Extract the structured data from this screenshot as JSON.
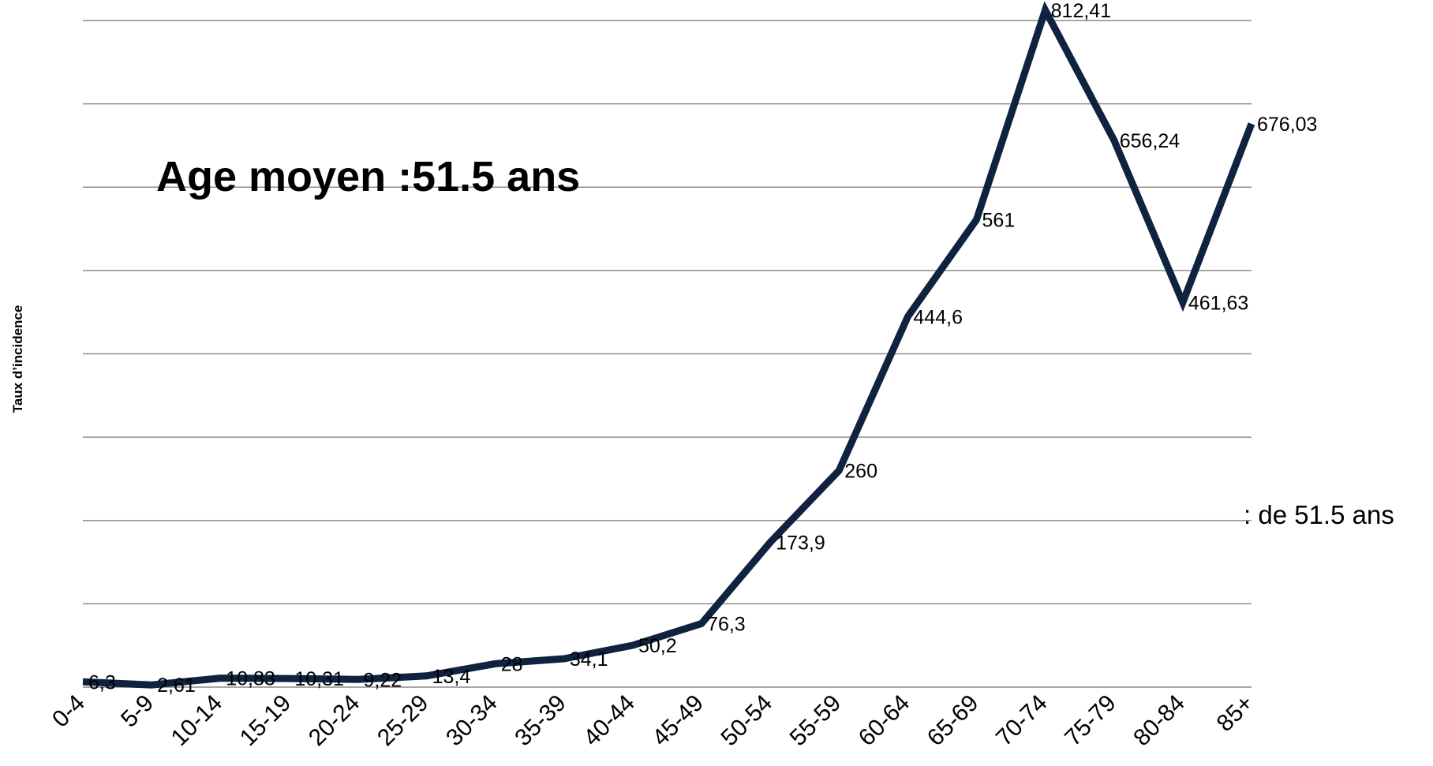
{
  "chart_data": {
    "type": "line",
    "ylabel": "Taux d’incidence",
    "xlabel": "",
    "categories": [
      "0-4",
      "5-9",
      "10-14",
      "15-19",
      "20-24",
      "25-29",
      "30-34",
      "35-39",
      "40-44",
      "45-49",
      "50-54",
      "55-59",
      "60-64",
      "65-69",
      "70-74",
      "75-79",
      "80-84",
      "85+"
    ],
    "series": [
      {
        "values": [
          6.3,
          2.61,
          10.83,
          10.31,
          9.22,
          13.4,
          28,
          34.1,
          50.2,
          76.3,
          173.9,
          260,
          444.6,
          561,
          812.41,
          656.24,
          461.63,
          676.03
        ],
        "labels": [
          "6,3",
          "2,61",
          "10,83",
          "10,31",
          "9,22",
          "13,4",
          "28",
          "34,1",
          "50,2",
          "76,3",
          "173,9",
          "260",
          "444,6",
          "561",
          "812,41",
          "656,24",
          "461,63",
          "676,03"
        ],
        "color": "#0f2340"
      }
    ],
    "ylim": [
      0,
      800
    ],
    "gridlines": [
      0,
      100,
      200,
      300,
      400,
      500,
      600,
      700,
      800
    ],
    "grid": true,
    "legend": "none",
    "annotations": [
      {
        "text": "Age moyen :51.5 ans"
      },
      {
        "text": ": de 51.5 ans"
      }
    ]
  }
}
